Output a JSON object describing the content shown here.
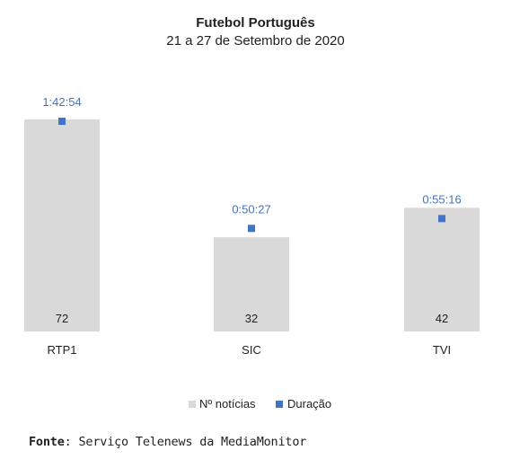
{
  "chart_data": {
    "type": "bar",
    "title": "Futebol Português",
    "subtitle": "21 a 27 de Setembro de 2020",
    "categories": [
      "RTP1",
      "SIC",
      "TVI"
    ],
    "series": [
      {
        "name": "Nº notícias",
        "type": "bar",
        "color": "#d9d9d9",
        "values": [
          72,
          32,
          42
        ],
        "labels": [
          "72",
          "32",
          "42"
        ]
      },
      {
        "name": "Duração",
        "type": "scatter",
        "color": "#4472c4",
        "values": [
          "1:42:54",
          "0:50:27",
          "0:55:16"
        ],
        "labels": [
          "1:42:54",
          "0:50:27",
          "0:55:16"
        ]
      }
    ],
    "legend": "bottom",
    "grid": false
  },
  "source": {
    "label": "Fonte",
    "text": ": Serviço Telenews da MediaMonitor"
  }
}
